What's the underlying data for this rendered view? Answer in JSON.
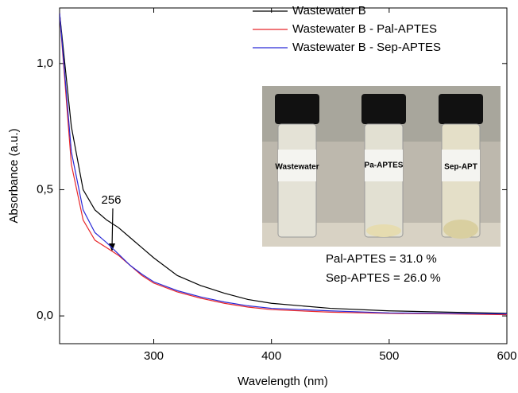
{
  "chart_data": {
    "type": "line",
    "xlabel": "Wavelength (nm)",
    "ylabel": "Absorbance (a.u.)",
    "x": [
      220,
      230,
      240,
      250,
      260,
      270,
      280,
      290,
      300,
      320,
      340,
      360,
      380,
      400,
      450,
      500,
      550,
      600
    ],
    "series": [
      {
        "name": "Wastewater B",
        "color": "#000000",
        "values": [
          1.2,
          0.75,
          0.5,
          0.42,
          0.38,
          0.35,
          0.31,
          0.27,
          0.23,
          0.16,
          0.12,
          0.09,
          0.065,
          0.05,
          0.03,
          0.02,
          0.015,
          0.01
        ]
      },
      {
        "name": "Wastewater B - Pal-APTES",
        "color": "#e8262a",
        "values": [
          1.2,
          0.6,
          0.38,
          0.3,
          0.27,
          0.24,
          0.2,
          0.16,
          0.13,
          0.095,
          0.07,
          0.05,
          0.035,
          0.025,
          0.015,
          0.01,
          0.008,
          0.005
        ]
      },
      {
        "name": "Wastewater B - Sep-APTES",
        "color": "#2a2ad6",
        "values": [
          1.2,
          0.65,
          0.42,
          0.33,
          0.29,
          0.245,
          0.2,
          0.165,
          0.135,
          0.1,
          0.075,
          0.055,
          0.04,
          0.03,
          0.02,
          0.012,
          0.01,
          0.008
        ]
      }
    ],
    "xlim": [
      220,
      600
    ],
    "xticks": [
      300,
      400,
      500,
      600
    ],
    "ylim": [
      -0.11,
      1.22
    ],
    "yticks": [
      {
        "value": 0,
        "label": "0,0"
      },
      {
        "value": 0.5,
        "label": "0,5"
      },
      {
        "value": 1.0,
        "label": "1,0"
      }
    ],
    "legend": "top-right",
    "annotations": [
      "256",
      "Pal-APTES = 31.0 %",
      "Sep-APTES = 26.0 %"
    ],
    "image_labels": [
      "Wastewater",
      "Pa-APTES",
      "Sep-APT"
    ]
  }
}
